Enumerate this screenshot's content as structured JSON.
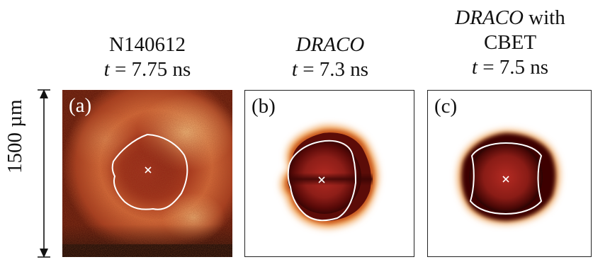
{
  "panels": [
    {
      "label": "(a)",
      "title_line1": "N140612",
      "time_symbol": "t",
      "time_value": " = 7.75 ns"
    },
    {
      "label": "(b)",
      "title_line1": "DRACO",
      "time_symbol": "t",
      "time_value": " = 7.3 ns"
    },
    {
      "label": "(c)",
      "title_line1a": "DRACO",
      "title_line1b": " with",
      "title_line2": "CBET",
      "time_symbol": "t",
      "time_value": " = 7.5 ns"
    }
  ],
  "scale_bar": {
    "label": "1500 µm"
  },
  "colors": {
    "background_dark": "#5a0a08",
    "ring_bright": "#f2a860",
    "contour": "#ffffff"
  }
}
